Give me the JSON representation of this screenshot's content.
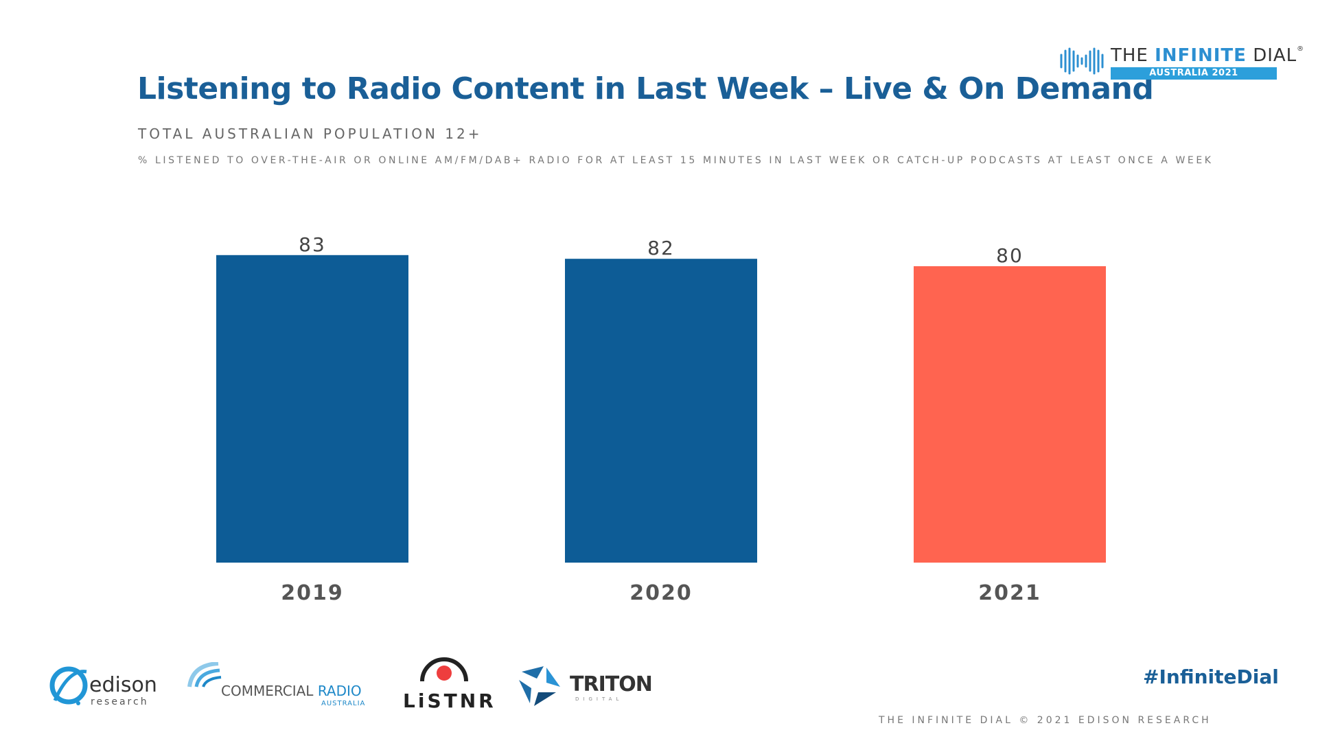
{
  "header": {
    "title": "Listening to Radio Content in Last Week – Live & On Demand",
    "subtitle": "TOTAL AUSTRALIAN POPULATION 12+",
    "description": "% LISTENED TO OVER-THE-AIR OR ONLINE AM/FM/DAB+ RADIO FOR AT LEAST 15 MINUTES IN LAST WEEK OR CATCH-UP PODCASTS AT LEAST ONCE A WEEK"
  },
  "brand": {
    "name_prefix": "THE ",
    "name_highlight": "INFINITE",
    "name_suffix": " DIAL",
    "trademark": "®",
    "edition": "AUSTRALIA 2021"
  },
  "chart_data": {
    "type": "bar",
    "categories": [
      "2019",
      "2020",
      "2021"
    ],
    "values": [
      83,
      82,
      80
    ],
    "colors": [
      "#0d5c96",
      "#0d5c96",
      "#ff6450"
    ],
    "title": "Listening to Radio Content in Last Week – Live & On Demand",
    "xlabel": "",
    "ylabel": "",
    "ylim": [
      0,
      100
    ],
    "grid": false,
    "legend": "none"
  },
  "footer": {
    "logos": {
      "edison": {
        "word": "edison",
        "sub": "research"
      },
      "commercial_radio": {
        "word_prefix": "COMMERCIAL ",
        "word_accent": "RADIO",
        "sub": "AUSTRALIA"
      },
      "listnr": {
        "word": "LiSTNR"
      },
      "triton": {
        "word": "TRITON",
        "sub": "DIGITAL"
      }
    },
    "hashtag": "#InfiniteDial",
    "credit": "THE INFINITE DIAL  © 2021 EDISON RESEARCH"
  },
  "colors": {
    "title": "#1a5f97",
    "bar_primary": "#0d5c96",
    "bar_highlight": "#ff6450",
    "brand_accent": "#2c9fdb"
  }
}
